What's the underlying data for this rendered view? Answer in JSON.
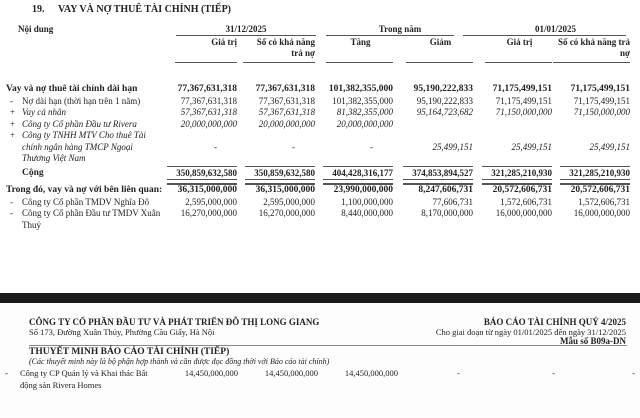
{
  "section": {
    "number": "19.",
    "title": "VAY VÀ NỢ THUÊ TÀI CHÍNH  (TIẾP)"
  },
  "headers": {
    "content": "Nội dung",
    "period_end": "31/12/2025",
    "during_year": "Trong năm",
    "period_start": "01/01/2025",
    "columns": [
      "Giá trị",
      "Số có khả năng trả nợ",
      "Tăng",
      "Giảm",
      "Giá trị",
      "Số có khả năng trả nợ"
    ]
  },
  "rows": [
    {
      "marker": "",
      "label": [
        "Vay và nợ thuê tài chính dài hạn"
      ],
      "style": "bold",
      "values": [
        "77,367,631,318",
        "77,367,631,318",
        "101,382,355,000",
        "95,190,222,833",
        "71,175,499,151",
        "71,175,499,151"
      ]
    },
    {
      "marker": "-",
      "label": [
        "Nợ dài hạn (thời hạn trên 1 năm)"
      ],
      "style": "",
      "values": [
        "77,367,631,318",
        "77,367,631,318",
        "101,382,355,000",
        "95,190,222,833",
        "71,175,499,151",
        "71,175,499,151"
      ]
    },
    {
      "marker": "+",
      "label": [
        "Vay cá nhân"
      ],
      "style": "italic",
      "values": [
        "57,367,631,318",
        "57,367,631,318",
        "81,382,355,000",
        "95,164,723,682",
        "71,150,000,000",
        "71,150,000,000"
      ]
    },
    {
      "marker": "+",
      "label": [
        "Công ty Cổ phần Đầu tư Rivera"
      ],
      "style": "italic",
      "values": [
        "20,000,000,000",
        "20,000,000,000",
        "20,000,000,000",
        "",
        "",
        ""
      ]
    },
    {
      "marker": "+",
      "label": [
        "Công ty TNHH MTV Cho thuê Tài",
        "chính ngân hàng TMCP Ngoại",
        "Thương Việt Nam"
      ],
      "style": "italic",
      "values": [
        "-",
        "-",
        "-",
        "25,499,151",
        "25,499,151",
        "25,499,151"
      ]
    },
    {
      "marker": "",
      "label": [
        "Cộng"
      ],
      "style": "total",
      "values": [
        "350,859,632,580",
        "350,859,632,580",
        "404,428,316,177",
        "374,853,894,527",
        "321,285,210,930",
        "321,285,210,930"
      ]
    },
    {
      "marker": "",
      "label": [
        "Trong đó, vay và nợ với bên liên quan:"
      ],
      "style": "bold",
      "values": [
        "36,315,000,000",
        "36,315,000,000",
        "23,990,000,000",
        "8,247,606,731",
        "20,572,606,731",
        "20,572,606,731"
      ]
    },
    {
      "marker": "-",
      "label": [
        "Công ty Cổ phần TMDV Nghĩa Đô"
      ],
      "style": "",
      "values": [
        "2,595,000,000",
        "2,595,000,000",
        "1,100,000,000",
        "77,606,731",
        "1,572,606,731",
        "1,572,606,731"
      ]
    },
    {
      "marker": "-",
      "label": [
        "Công ty Cổ phần Đầu tư TMDV Xuân",
        "Thuỷ"
      ],
      "style": "",
      "values": [
        "16,270,000,000",
        "16,270,000,000",
        "8,440,000,000",
        "8,170,000,000",
        "16,000,000,000",
        "16,000,000,000"
      ]
    }
  ],
  "page2": {
    "company": "CÔNG TY CỔ PHẦN ĐẦU TƯ VÀ PHÁT TRIỂN ĐÔ THỊ LONG GIANG",
    "address": "Số 173, Đường Xuân Thủy, Phường Cầu Giấy, Hà Nội",
    "report_title": "BÁO CÁO TÀI CHÍNH QUÝ 4/2025",
    "period": "Cho giai đoạn từ ngày 01/01/2025 đến ngày 31/12/2025",
    "form": "Mẫu số B09a-DN",
    "notes_title": "THUYẾT MINH BÁO CÁO TÀI CHÍNH (TIẾP)",
    "notes_subtitle": "(Các thuyết minh này là bộ phận hợp thành và cần được đọc đồng thời với Báo cáo tài chính)",
    "row": {
      "marker": "-",
      "label": [
        "Công ty CP Quản lý và Khai thác Bất",
        "động sản Rivera Homes"
      ],
      "values": [
        "14,450,000,000",
        "14,450,000,000",
        "14,450,000,000",
        "-",
        "-",
        "-"
      ]
    }
  }
}
